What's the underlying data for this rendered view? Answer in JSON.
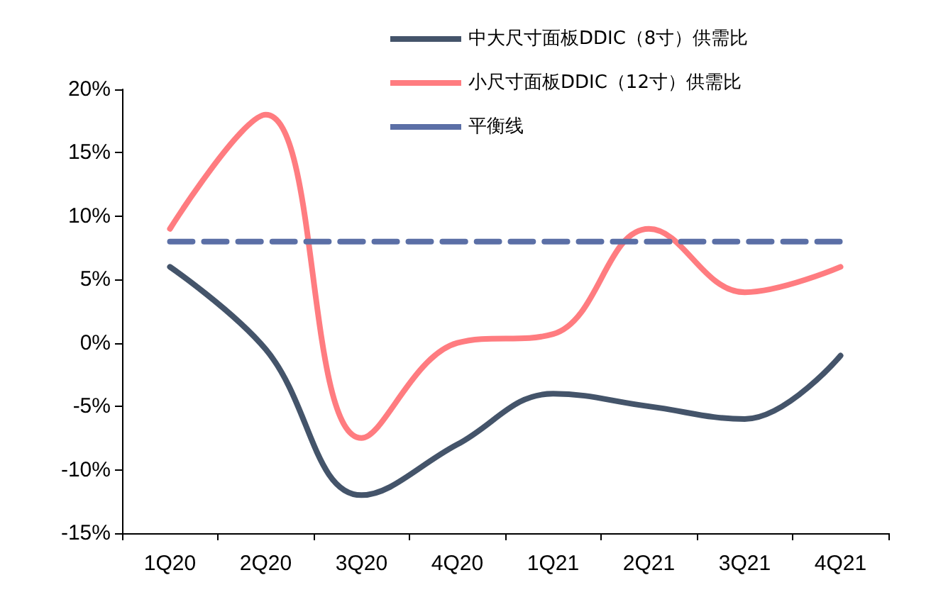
{
  "chart_data": {
    "type": "line",
    "categories": [
      "1Q20",
      "2Q20",
      "3Q20",
      "4Q20",
      "1Q21",
      "2Q21",
      "3Q21",
      "4Q21"
    ],
    "series": [
      {
        "name": "中大尺寸面板DDIC（8寸）供需比",
        "color": "#44546a",
        "values": [
          6,
          -0.5,
          -12,
          -8,
          -4,
          -5,
          -6,
          -1
        ]
      },
      {
        "name": "小尺寸面板DDIC（12寸）供需比",
        "color": "#ff7c80",
        "values": [
          9,
          18,
          -7.5,
          0,
          0.7,
          9,
          4,
          6
        ]
      },
      {
        "name": "平衡线",
        "color": "#5b6fa6",
        "line_style": "dashed",
        "values": [
          8,
          8,
          8,
          8,
          8,
          8,
          8,
          8
        ]
      }
    ],
    "ylim": [
      -15,
      20
    ],
    "yticks": [
      {
        "value": -15,
        "label": "-15%"
      },
      {
        "value": -10,
        "label": "-10%"
      },
      {
        "value": -5,
        "label": "-5%"
      },
      {
        "value": 0,
        "label": "0%"
      },
      {
        "value": 5,
        "label": "5%"
      },
      {
        "value": 10,
        "label": "10%"
      },
      {
        "value": 15,
        "label": "15%"
      },
      {
        "value": 20,
        "label": "20%"
      }
    ],
    "grid": false,
    "legend": "top right",
    "marker": "none",
    "line_style": "solid"
  }
}
